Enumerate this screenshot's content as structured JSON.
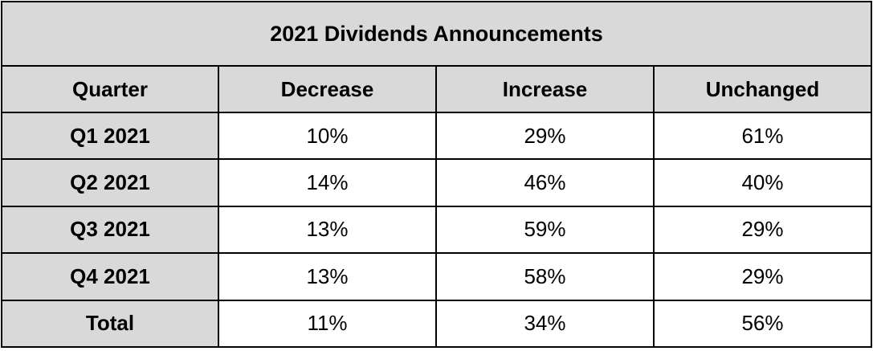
{
  "chart_data": {
    "type": "table",
    "title": "2021 Dividends Announcements",
    "columns": [
      "Quarter",
      "Decrease",
      "Increase",
      "Unchanged"
    ],
    "rows": [
      {
        "label": "Q1 2021",
        "values": [
          "10%",
          "29%",
          "61%"
        ]
      },
      {
        "label": "Q2 2021",
        "values": [
          "14%",
          "46%",
          "40%"
        ]
      },
      {
        "label": "Q3 2021",
        "values": [
          "13%",
          "59%",
          "29%"
        ]
      },
      {
        "label": "Q4 2021",
        "values": [
          "13%",
          "58%",
          "29%"
        ]
      },
      {
        "label": "Total",
        "values": [
          "11%",
          "34%",
          "56%"
        ]
      }
    ]
  },
  "colors": {
    "header_bg": "#d9d9d9",
    "cell_bg": "#ffffff",
    "border": "#000000",
    "text": "#000000"
  }
}
